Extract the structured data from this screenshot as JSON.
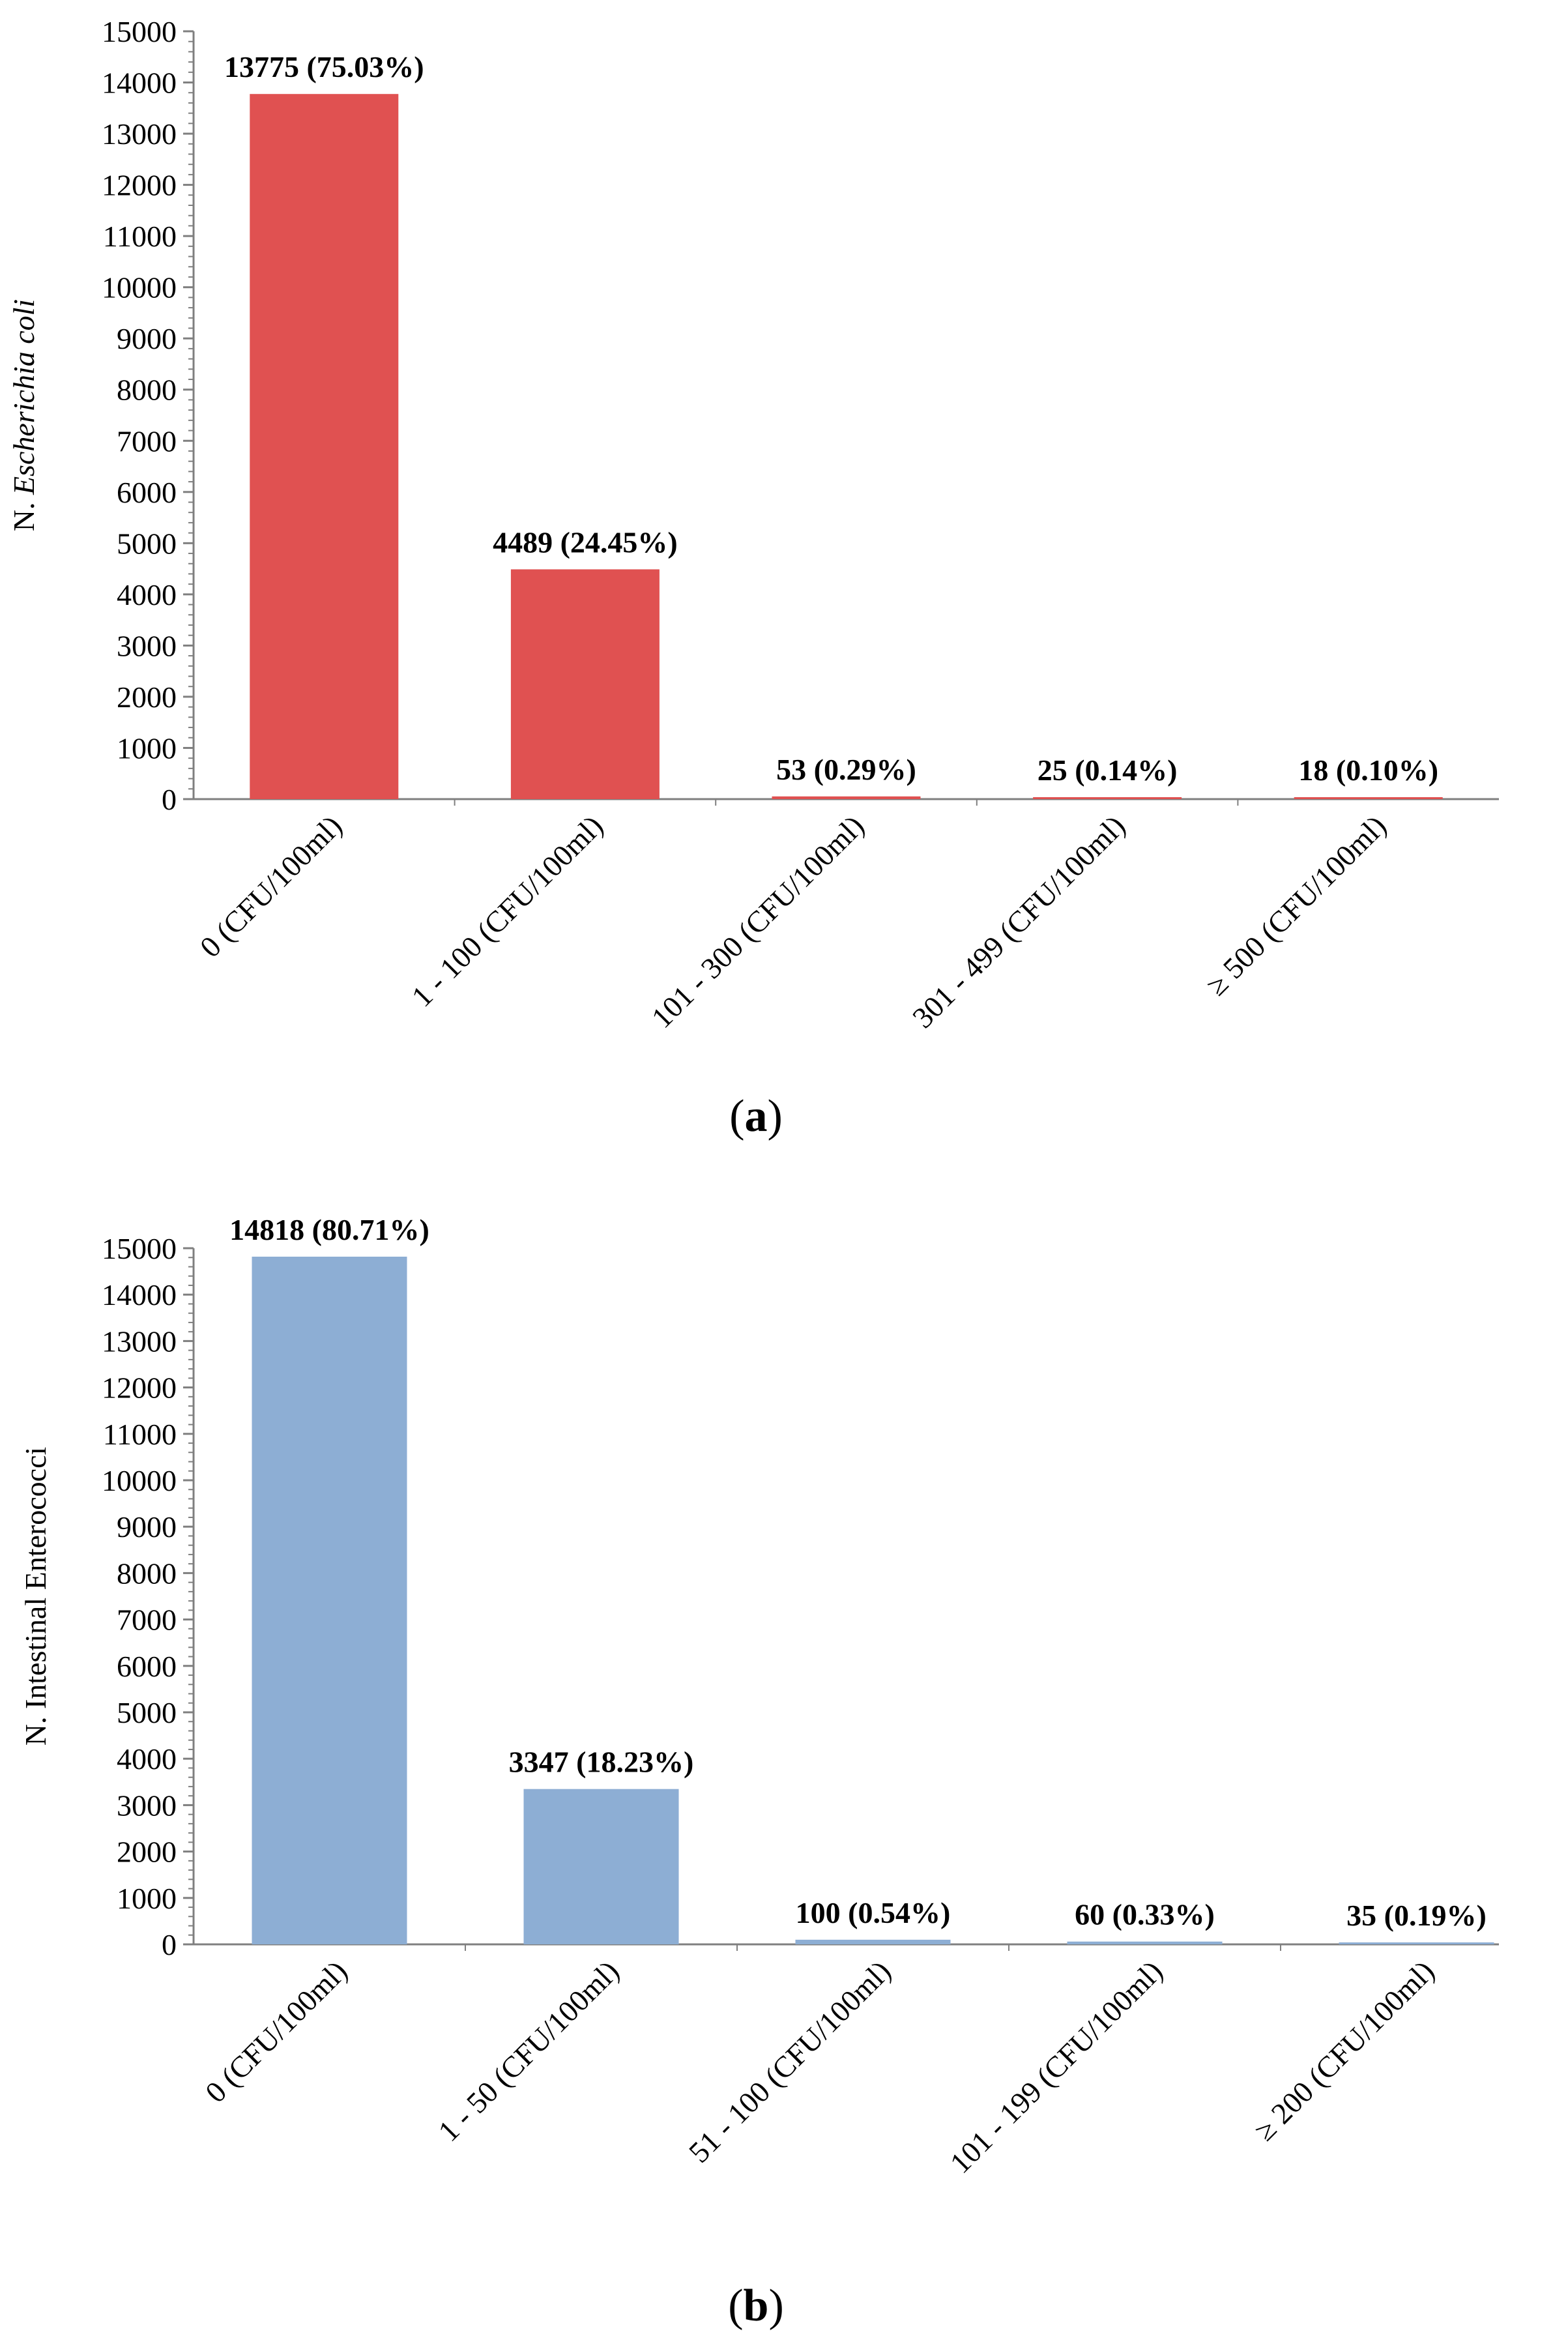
{
  "chart_data": [
    {
      "type": "bar",
      "panel_label": "a",
      "ylabel_prefix": "N. ",
      "ylabel_italic": "Escherichia coli",
      "ylim": [
        0,
        15000
      ],
      "yticks": [
        0,
        1000,
        2000,
        3000,
        4000,
        5000,
        6000,
        7000,
        8000,
        9000,
        10000,
        11000,
        12000,
        13000,
        14000,
        15000
      ],
      "categories": [
        "0 (CFU/100ml)",
        "1 - 100 (CFU/100ml)",
        "101 - 300 (CFU/100ml)",
        "301 - 499 (CFU/100ml)",
        "≥ 500 (CFU/100ml)"
      ],
      "values": [
        13775,
        4489,
        53,
        25,
        18
      ],
      "data_labels": [
        "13775 (75.03%)",
        "4489 (24.45%)",
        "53 (0.29%)",
        "25 (0.14%)",
        "18 (0.10%)"
      ],
      "color": "#E05151"
    },
    {
      "type": "bar",
      "panel_label": "b",
      "ylabel_prefix": "N. Intestinal Enterococci",
      "ylabel_italic": "",
      "ylim": [
        0,
        15000
      ],
      "yticks": [
        0,
        1000,
        2000,
        3000,
        4000,
        5000,
        6000,
        7000,
        8000,
        9000,
        10000,
        11000,
        12000,
        13000,
        14000,
        15000
      ],
      "categories": [
        "0 (CFU/100ml)",
        "1 - 50 (CFU/100ml)",
        "51 - 100 (CFU/100ml)",
        "101 - 199 (CFU/100ml)",
        "≥ 200 (CFU/100ml)"
      ],
      "values": [
        14818,
        3347,
        100,
        60,
        35
      ],
      "data_labels": [
        "14818 (80.71%)",
        "3347 (18.23%)",
        "100 (0.54%)",
        "60 (0.33%)",
        "35 (0.19%)"
      ],
      "color": "#8DAED4"
    }
  ]
}
